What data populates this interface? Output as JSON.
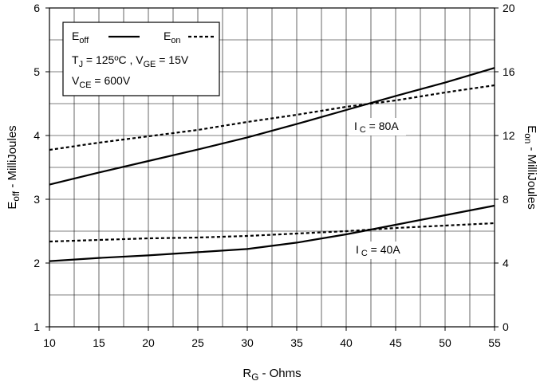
{
  "chart_data": {
    "type": "line",
    "xlabel": {
      "main": "R",
      "sub": "G",
      "rest": " - Ohms"
    },
    "ylabel_left": {
      "main": "E",
      "sub": "off",
      "rest": " - MilliJoules"
    },
    "ylabel_right": {
      "main": "E",
      "sub": "on",
      "rest": " - MilliJoules"
    },
    "xlim": [
      10,
      55
    ],
    "ylim_left": [
      1,
      6
    ],
    "ylim_right": [
      0,
      20
    ],
    "x_ticks": [
      "10",
      "15",
      "20",
      "25",
      "30",
      "35",
      "40",
      "45",
      "50",
      "55"
    ],
    "y_left_ticks": [
      "1",
      "2",
      "3",
      "4",
      "5",
      "6"
    ],
    "y_right_ticks": [
      "0",
      "4",
      "8",
      "12",
      "16",
      "20"
    ],
    "grid": true,
    "legend_position": "top-left",
    "legend": {
      "eoff": {
        "main": "E",
        "sub": "off"
      },
      "eon": {
        "main": "E",
        "sub": "on"
      },
      "cond1": {
        "tj_main": "T",
        "tj_sub": "J",
        "tj_rest": " = 125ºC ,  ",
        "vge_main": "V",
        "vge_sub": "GE",
        "vge_rest": " = 15V"
      },
      "cond2": {
        "main": "V",
        "sub": "CE",
        "rest": " = 600V"
      }
    },
    "annotations": [
      {
        "main": "I",
        "sub": " C",
        "rest": " = 80A"
      },
      {
        "main": "I",
        "sub": " C",
        "rest": " = 40A"
      }
    ],
    "series": [
      {
        "axis": "left",
        "style": "solid",
        "points": [
          [
            10,
            3.23
          ],
          [
            15,
            3.42
          ],
          [
            20,
            3.6
          ],
          [
            25,
            3.78
          ],
          [
            30,
            3.97
          ],
          [
            35,
            4.18
          ],
          [
            40,
            4.4
          ],
          [
            45,
            4.62
          ],
          [
            50,
            4.83
          ],
          [
            55,
            5.06
          ]
        ]
      },
      {
        "axis": "right",
        "style": "dashed",
        "points": [
          [
            10,
            11.1
          ],
          [
            15,
            11.55
          ],
          [
            20,
            11.95
          ],
          [
            25,
            12.35
          ],
          [
            30,
            12.85
          ],
          [
            35,
            13.3
          ],
          [
            40,
            13.8
          ],
          [
            45,
            14.2
          ],
          [
            50,
            14.7
          ],
          [
            55,
            15.15
          ]
        ]
      },
      {
        "axis": "left",
        "style": "solid",
        "points": [
          [
            10,
            2.03
          ],
          [
            15,
            2.08
          ],
          [
            20,
            2.12
          ],
          [
            25,
            2.17
          ],
          [
            30,
            2.22
          ],
          [
            35,
            2.32
          ],
          [
            40,
            2.45
          ],
          [
            45,
            2.6
          ],
          [
            50,
            2.75
          ],
          [
            55,
            2.9
          ]
        ]
      },
      {
        "axis": "right",
        "style": "dashed",
        "points": [
          [
            10,
            5.35
          ],
          [
            15,
            5.45
          ],
          [
            20,
            5.55
          ],
          [
            25,
            5.6
          ],
          [
            30,
            5.7
          ],
          [
            35,
            5.85
          ],
          [
            40,
            6.0
          ],
          [
            45,
            6.2
          ],
          [
            50,
            6.35
          ],
          [
            55,
            6.5
          ]
        ]
      }
    ]
  }
}
